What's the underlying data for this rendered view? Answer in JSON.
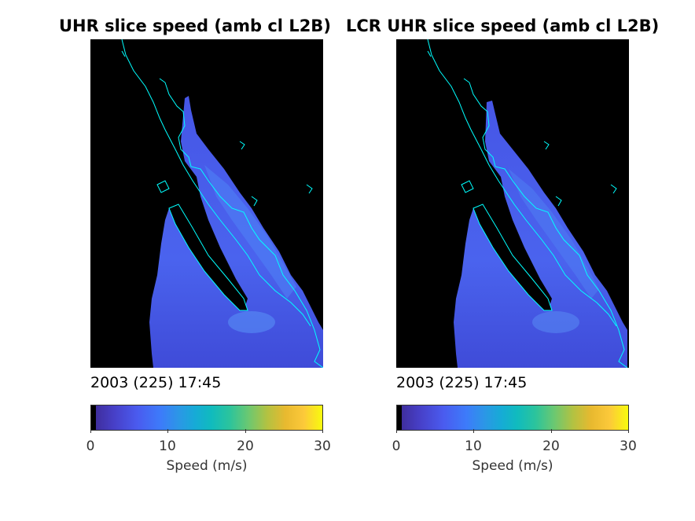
{
  "panels": [
    {
      "title": "UHR slice speed (amb cl L2B)",
      "timestamp": "2003 (225) 17:45",
      "colorbar": {
        "ticks": [
          "0",
          "10",
          "20",
          "30"
        ],
        "label": "Speed (m/s)"
      }
    },
    {
      "title": "LCR UHR slice speed (amb cl L2B)",
      "timestamp": "2003 (225) 17:45",
      "colorbar": {
        "ticks": [
          "0",
          "10",
          "20",
          "30"
        ],
        "label": "Speed (m/s)"
      }
    }
  ],
  "chart_data": [
    {
      "type": "heatmap",
      "title": "UHR slice speed (amb cl L2B)",
      "xlabel": "",
      "ylabel": "",
      "colorbar": {
        "label": "Speed (m/s)",
        "range": [
          0,
          30
        ],
        "ticks": [
          0,
          10,
          20,
          30
        ],
        "colormap": "parula"
      },
      "annotation": "2003 (225) 17:45",
      "background": "#000000",
      "coastline_color": "#00ffff",
      "grid": false
    },
    {
      "type": "heatmap",
      "title": "LCR UHR slice speed (amb cl L2B)",
      "xlabel": "",
      "ylabel": "",
      "colorbar": {
        "label": "Speed (m/s)",
        "range": [
          0,
          30
        ],
        "ticks": [
          0,
          10,
          20,
          30
        ],
        "colormap": "parula"
      },
      "annotation": "2003 (225) 17:45",
      "background": "#000000",
      "coastline_color": "#00ffff",
      "grid": false
    }
  ]
}
